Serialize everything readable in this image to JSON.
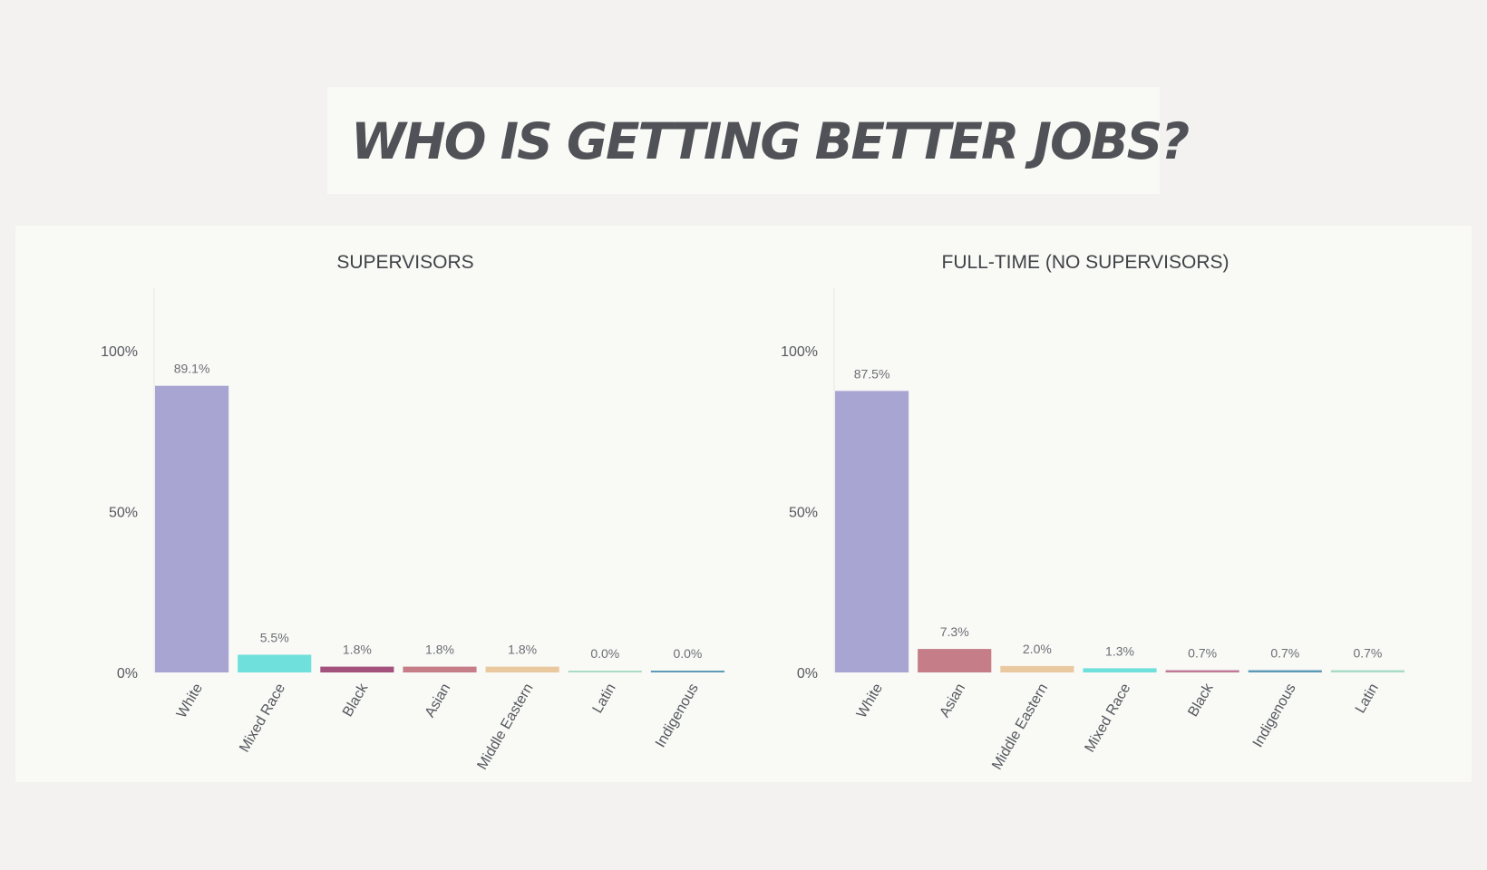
{
  "header": {
    "title": "WHO IS GETTING BETTER JOBS?"
  },
  "chart_data": [
    {
      "type": "bar",
      "title": "SUPERVISORS",
      "categories": [
        "White",
        "Mixed Race",
        "Black",
        "Asian",
        "Middle Eastern",
        "Latin",
        "Indigenous"
      ],
      "values": [
        89.1,
        5.5,
        1.8,
        1.8,
        1.8,
        0.0,
        0.0
      ],
      "data_labels": [
        "89.1%",
        "5.5%",
        "1.8%",
        "1.8%",
        "1.8%",
        "0.0%",
        "0.0%"
      ],
      "colors": [
        "#a8a5d3",
        "#6fe0dc",
        "#a3527e",
        "#c57d88",
        "#eac9a0",
        "#a9dbc8",
        "#5e9bb9"
      ],
      "yticks": [
        "0%",
        "50%",
        "100%"
      ],
      "ylim": [
        0,
        120
      ],
      "xlabel": "",
      "ylabel": "",
      "grid": false,
      "legend": "none"
    },
    {
      "type": "bar",
      "title": "FULL-TIME (NO SUPERVISORS)",
      "categories": [
        "White",
        "Asian",
        "Middle Eastern",
        "Mixed Race",
        "Black",
        "Indigenous",
        "Latin"
      ],
      "values": [
        87.5,
        7.3,
        2.0,
        1.3,
        0.7,
        0.7,
        0.7
      ],
      "data_labels": [
        "87.5%",
        "7.3%",
        "2.0%",
        "1.3%",
        "0.7%",
        "0.7%",
        "0.7%"
      ],
      "colors": [
        "#a8a5d3",
        "#c57d88",
        "#eac9a0",
        "#6fe0dc",
        "#c07a98",
        "#5e9bb9",
        "#a9dbc8"
      ],
      "yticks": [
        "0%",
        "50%",
        "100%"
      ],
      "ylim": [
        0,
        120
      ],
      "xlabel": "",
      "ylabel": "",
      "grid": false,
      "legend": "none"
    }
  ]
}
